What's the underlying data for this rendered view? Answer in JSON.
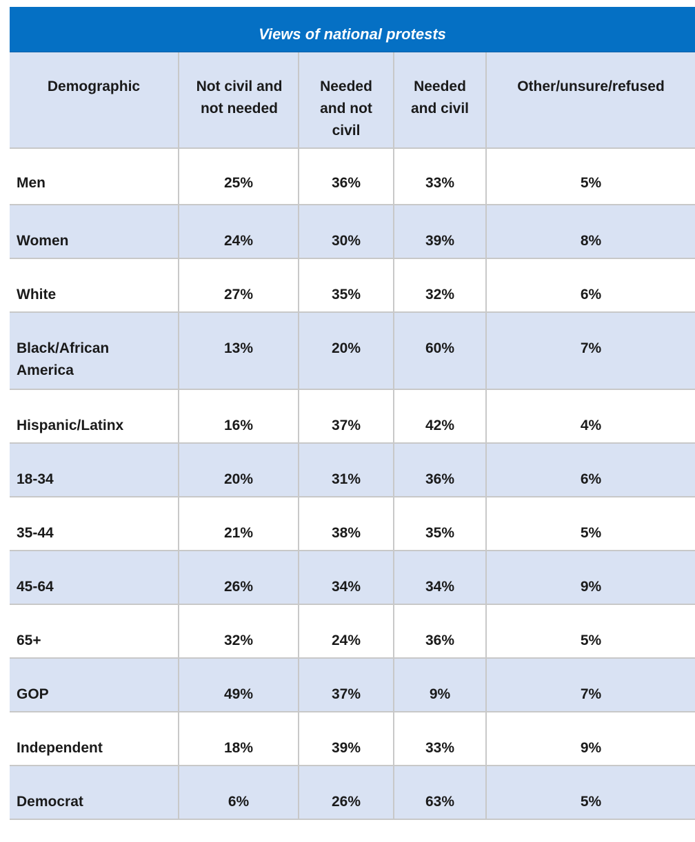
{
  "chart_data": {
    "type": "table",
    "title": "Views of national protests",
    "columns": [
      "Demographic",
      "Not civil and not needed",
      "Needed and not civil",
      "Needed and civil",
      "Other/unsure/refused"
    ],
    "rows": [
      [
        "Men",
        "25%",
        "36%",
        "33%",
        "5%"
      ],
      [
        "Women",
        "24%",
        "30%",
        "39%",
        "8%"
      ],
      [
        "White",
        "27%",
        "35%",
        "32%",
        "6%"
      ],
      [
        "Black/African America",
        "13%",
        "20%",
        "60%",
        "7%"
      ],
      [
        "Hispanic/Latinx",
        "16%",
        "37%",
        "42%",
        "4%"
      ],
      [
        "18-34",
        "20%",
        "31%",
        "36%",
        "6%"
      ],
      [
        "35-44",
        "21%",
        "38%",
        "35%",
        "5%"
      ],
      [
        "45-64",
        "26%",
        "34%",
        "34%",
        "9%"
      ],
      [
        "65+",
        "32%",
        "24%",
        "36%",
        "5%"
      ],
      [
        "GOP",
        "49%",
        "37%",
        "9%",
        "7%"
      ],
      [
        "Independent",
        "18%",
        "39%",
        "33%",
        "9%"
      ],
      [
        "Democrat",
        "6%",
        "26%",
        "63%",
        "5%"
      ]
    ]
  },
  "colors": {
    "title_bg": "#0570c4",
    "title_text": "#ffffff",
    "band": "#d9e2f3",
    "grid": "#c8c8c8"
  }
}
